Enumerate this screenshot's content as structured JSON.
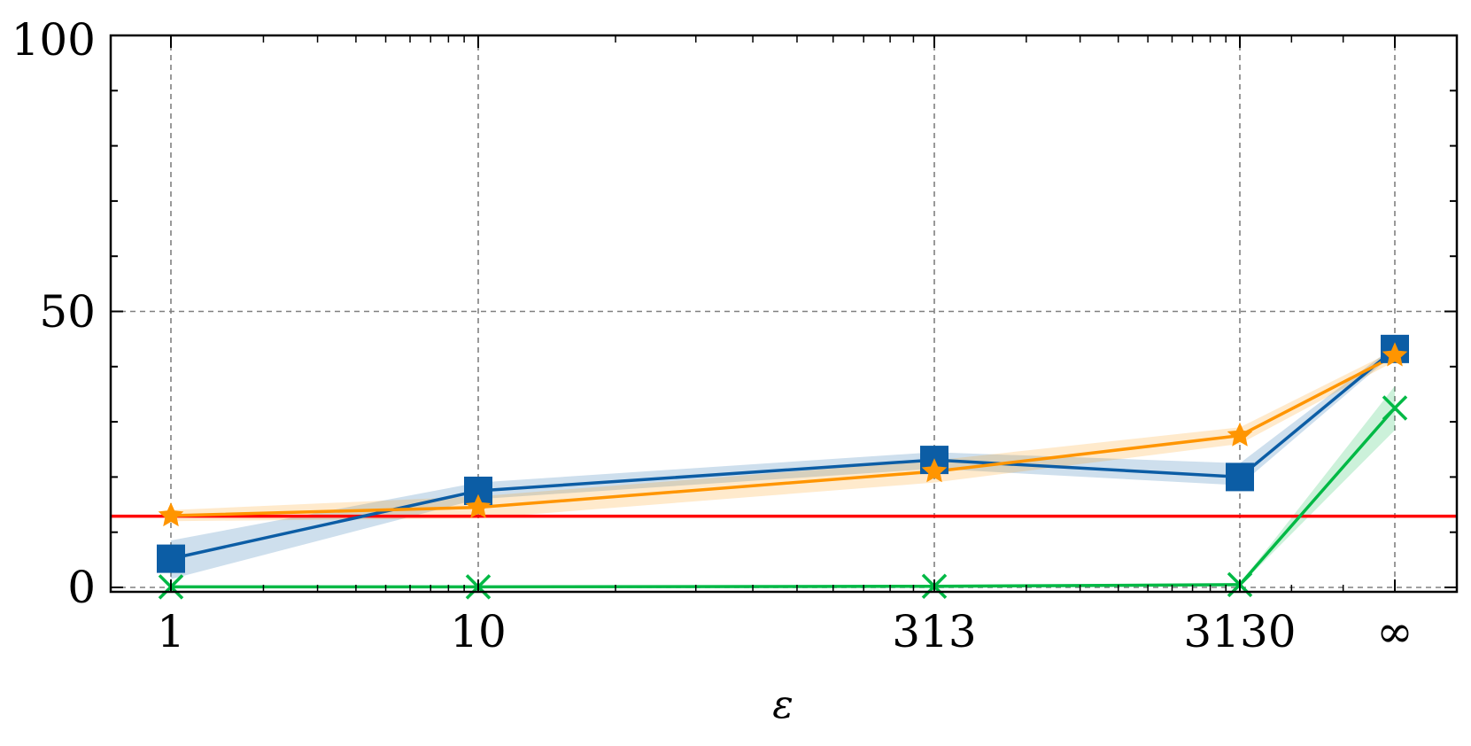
{
  "chart_data": {
    "type": "line",
    "xlabel": "ε",
    "ylabel": "",
    "x_tick_labels": [
      "1",
      "10",
      "313",
      "3130",
      "∞"
    ],
    "y_tick_labels": [
      "0",
      "50",
      "100"
    ],
    "ylim": [
      0,
      100
    ],
    "grid": true,
    "colors": {
      "blue": "#0c5da5",
      "orange": "#ff9500",
      "green": "#00b945",
      "red": "#ff0000"
    },
    "series": [
      {
        "color": "#0c5da5",
        "marker": "square",
        "values": [
          5.2,
          17.5,
          23.1,
          20.0,
          43.2
        ],
        "band": [
          [
            1.5,
            8.5
          ],
          [
            16.0,
            19.0
          ],
          [
            21.5,
            24.5
          ],
          [
            18.5,
            22.5
          ],
          [
            42.5,
            43.8
          ]
        ]
      },
      {
        "color": "#ff9500",
        "marker": "star",
        "values": [
          13.0,
          14.5,
          21.0,
          27.5,
          42.0
        ],
        "band": [
          [
            12.0,
            14.0
          ],
          [
            12.5,
            16.5
          ],
          [
            19.0,
            23.0
          ],
          [
            26.0,
            29.0
          ],
          [
            41.0,
            43.0
          ]
        ]
      },
      {
        "color": "#00b945",
        "marker": "x",
        "values": [
          0.1,
          0.1,
          0.2,
          0.5,
          32.5
        ],
        "band": [
          [
            0.0,
            0.2
          ],
          [
            0.0,
            0.2
          ],
          [
            0.1,
            0.3
          ],
          [
            0.3,
            0.7
          ],
          [
            28.5,
            36.5
          ]
        ]
      }
    ],
    "reference_line": {
      "color": "#ff0000",
      "y": 12.9
    }
  }
}
